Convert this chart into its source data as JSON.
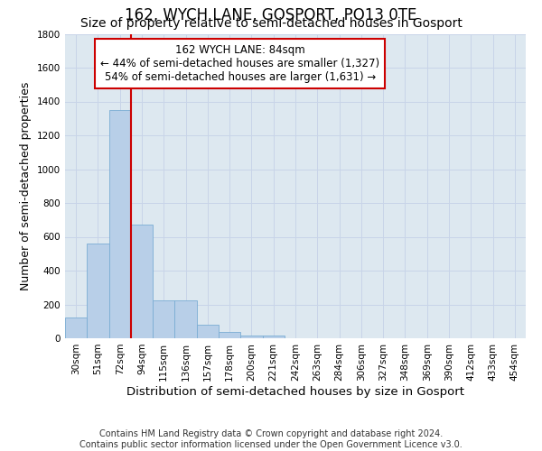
{
  "title": "162, WYCH LANE, GOSPORT, PO13 0TE",
  "subtitle": "Size of property relative to semi-detached houses in Gosport",
  "xlabel": "Distribution of semi-detached houses by size in Gosport",
  "ylabel": "Number of semi-detached properties",
  "categories": [
    "30sqm",
    "51sqm",
    "72sqm",
    "94sqm",
    "115sqm",
    "136sqm",
    "157sqm",
    "178sqm",
    "200sqm",
    "221sqm",
    "242sqm",
    "263sqm",
    "284sqm",
    "306sqm",
    "327sqm",
    "348sqm",
    "369sqm",
    "390sqm",
    "412sqm",
    "433sqm",
    "454sqm"
  ],
  "values": [
    125,
    560,
    1350,
    670,
    225,
    225,
    78,
    38,
    15,
    15,
    0,
    0,
    0,
    0,
    0,
    0,
    0,
    0,
    0,
    0,
    0
  ],
  "bar_color": "#b8cfe8",
  "bar_edge_color": "#7aadd4",
  "vline_color": "#cc0000",
  "annotation_text": "162 WYCH LANE: 84sqm\n← 44% of semi-detached houses are smaller (1,327)\n54% of semi-detached houses are larger (1,631) →",
  "annotation_box_color": "#ffffff",
  "annotation_box_edge_color": "#cc0000",
  "ylim": [
    0,
    1800
  ],
  "yticks": [
    0,
    200,
    400,
    600,
    800,
    1000,
    1200,
    1400,
    1600,
    1800
  ],
  "grid_color": "#c8d4e8",
  "background_color": "#dde8f0",
  "footer_line1": "Contains HM Land Registry data © Crown copyright and database right 2024.",
  "footer_line2": "Contains public sector information licensed under the Open Government Licence v3.0.",
  "title_fontsize": 12,
  "subtitle_fontsize": 10,
  "xlabel_fontsize": 9.5,
  "ylabel_fontsize": 9,
  "tick_fontsize": 7.5,
  "annotation_fontsize": 8.5,
  "footer_fontsize": 7
}
